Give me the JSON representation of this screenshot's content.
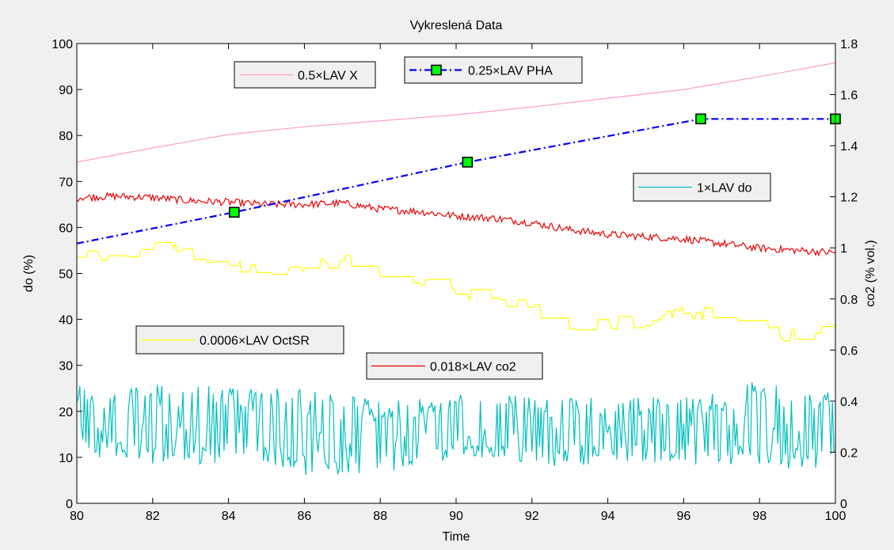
{
  "chart_data": {
    "type": "line",
    "title": "Vykreslená Data",
    "xlabel": "Time",
    "ylabel_left": "do (%)",
    "ylabel_right": "co2 (% vol.)",
    "xlim": [
      80,
      100
    ],
    "ylim_left": [
      0,
      100
    ],
    "ylim_right": [
      0,
      1.8
    ],
    "x_ticks": [
      80,
      82,
      84,
      86,
      88,
      90,
      92,
      94,
      96,
      98,
      100
    ],
    "y_left_ticks": [
      0,
      10,
      20,
      30,
      40,
      50,
      60,
      70,
      80,
      90,
      100
    ],
    "y_right_ticks": [
      "0",
      "0.2",
      "0.4",
      "0.6",
      "0.8",
      "1",
      "1.2",
      "1.4",
      "1.6",
      "1.8"
    ],
    "grid": false,
    "series": [
      {
        "name": "0.5×LAV X",
        "color": "#ff9ccd",
        "style": "solid",
        "marker": "none",
        "axis": "left",
        "x": [
          80,
          82,
          84,
          86,
          88,
          90,
          92,
          94,
          96,
          98,
          100
        ],
        "values": [
          74.2,
          77.3,
          80.2,
          81.9,
          83.2,
          84.5,
          86.2,
          88.1,
          90.0,
          92.8,
          95.8
        ]
      },
      {
        "name": "0.25×LAV PHA",
        "color": "#0000ff",
        "marker_color": "#00ff00",
        "style": "dashdot",
        "marker": "square",
        "axis": "left",
        "x": [
          80,
          84.15,
          90.3,
          96.45,
          100
        ],
        "values": [
          56.5,
          63.3,
          74.2,
          83.6,
          83.6
        ]
      },
      {
        "name": "1×LAV do",
        "color": "#00bfbf",
        "style": "solid",
        "marker": "none",
        "axis": "left",
        "noisy": true,
        "x": [
          80,
          81,
          82,
          83,
          84,
          85,
          86,
          87,
          88,
          89,
          90,
          91,
          92,
          93,
          94,
          95,
          96,
          97,
          98,
          99,
          100
        ],
        "values": [
          17,
          16,
          17,
          17,
          16,
          16,
          15,
          14,
          14,
          14,
          15,
          15,
          15,
          16,
          16,
          16,
          16,
          16,
          17,
          17,
          17
        ],
        "range_min": [
          10,
          10,
          8,
          8,
          9,
          9,
          6,
          6,
          5,
          8,
          10,
          10,
          8,
          8,
          9,
          9,
          8,
          8,
          8,
          6,
          8
        ],
        "range_max": [
          26,
          25,
          26,
          26,
          25,
          25,
          25,
          24,
          22,
          23,
          24,
          24,
          23,
          23,
          23,
          23,
          24,
          24,
          27,
          26,
          25
        ]
      },
      {
        "name": "0.0006×LAV OctSR",
        "color": "#ffff00",
        "style": "solid",
        "marker": "none",
        "axis": "left",
        "noisy": true,
        "x": [
          80,
          81,
          82,
          82.5,
          83,
          84,
          85,
          86,
          87,
          88,
          89,
          90,
          91,
          92,
          93,
          94,
          95,
          96,
          97,
          98,
          99,
          100
        ],
        "values": [
          53.5,
          54.0,
          56.0,
          56.5,
          53.0,
          51.5,
          50.5,
          51.0,
          53.0,
          50.5,
          48.0,
          45.0,
          45.5,
          42.0,
          39.0,
          39.0,
          40.0,
          42.0,
          40.5,
          38.5,
          36.0,
          37.5
        ]
      },
      {
        "name": "0.018×LAV co2",
        "color": "#ee0000",
        "style": "solid",
        "marker": "none",
        "axis": "left",
        "noisy": true,
        "x": [
          80,
          81,
          82,
          83,
          84,
          85,
          86,
          87,
          88,
          89,
          90,
          91,
          92,
          93,
          94,
          95,
          96,
          97,
          98,
          99,
          100
        ],
        "values": [
          66.5,
          66.8,
          66.5,
          65.8,
          65.5,
          65.0,
          65.0,
          65.3,
          64.0,
          63.5,
          62.5,
          62.0,
          61.0,
          59.5,
          58.5,
          58.0,
          57.5,
          56.5,
          55.5,
          55.0,
          54.5
        ]
      }
    ]
  },
  "legends": [
    {
      "label": "0.5×LAV X",
      "color": "#ff9ccd",
      "style": "solid",
      "marker": "none"
    },
    {
      "label": "0.25×LAV PHA",
      "color": "#0000ff",
      "style": "dashdot",
      "marker": "square",
      "marker_color": "#00ff00"
    },
    {
      "label": "1×LAV do",
      "color": "#00bfbf",
      "style": "solid",
      "marker": "none"
    },
    {
      "label": "0.0006×LAV OctSR",
      "color": "#ffff00",
      "style": "solid",
      "marker": "none"
    },
    {
      "label": "0.018×LAV co2",
      "color": "#ee0000",
      "style": "solid",
      "marker": "none"
    }
  ]
}
